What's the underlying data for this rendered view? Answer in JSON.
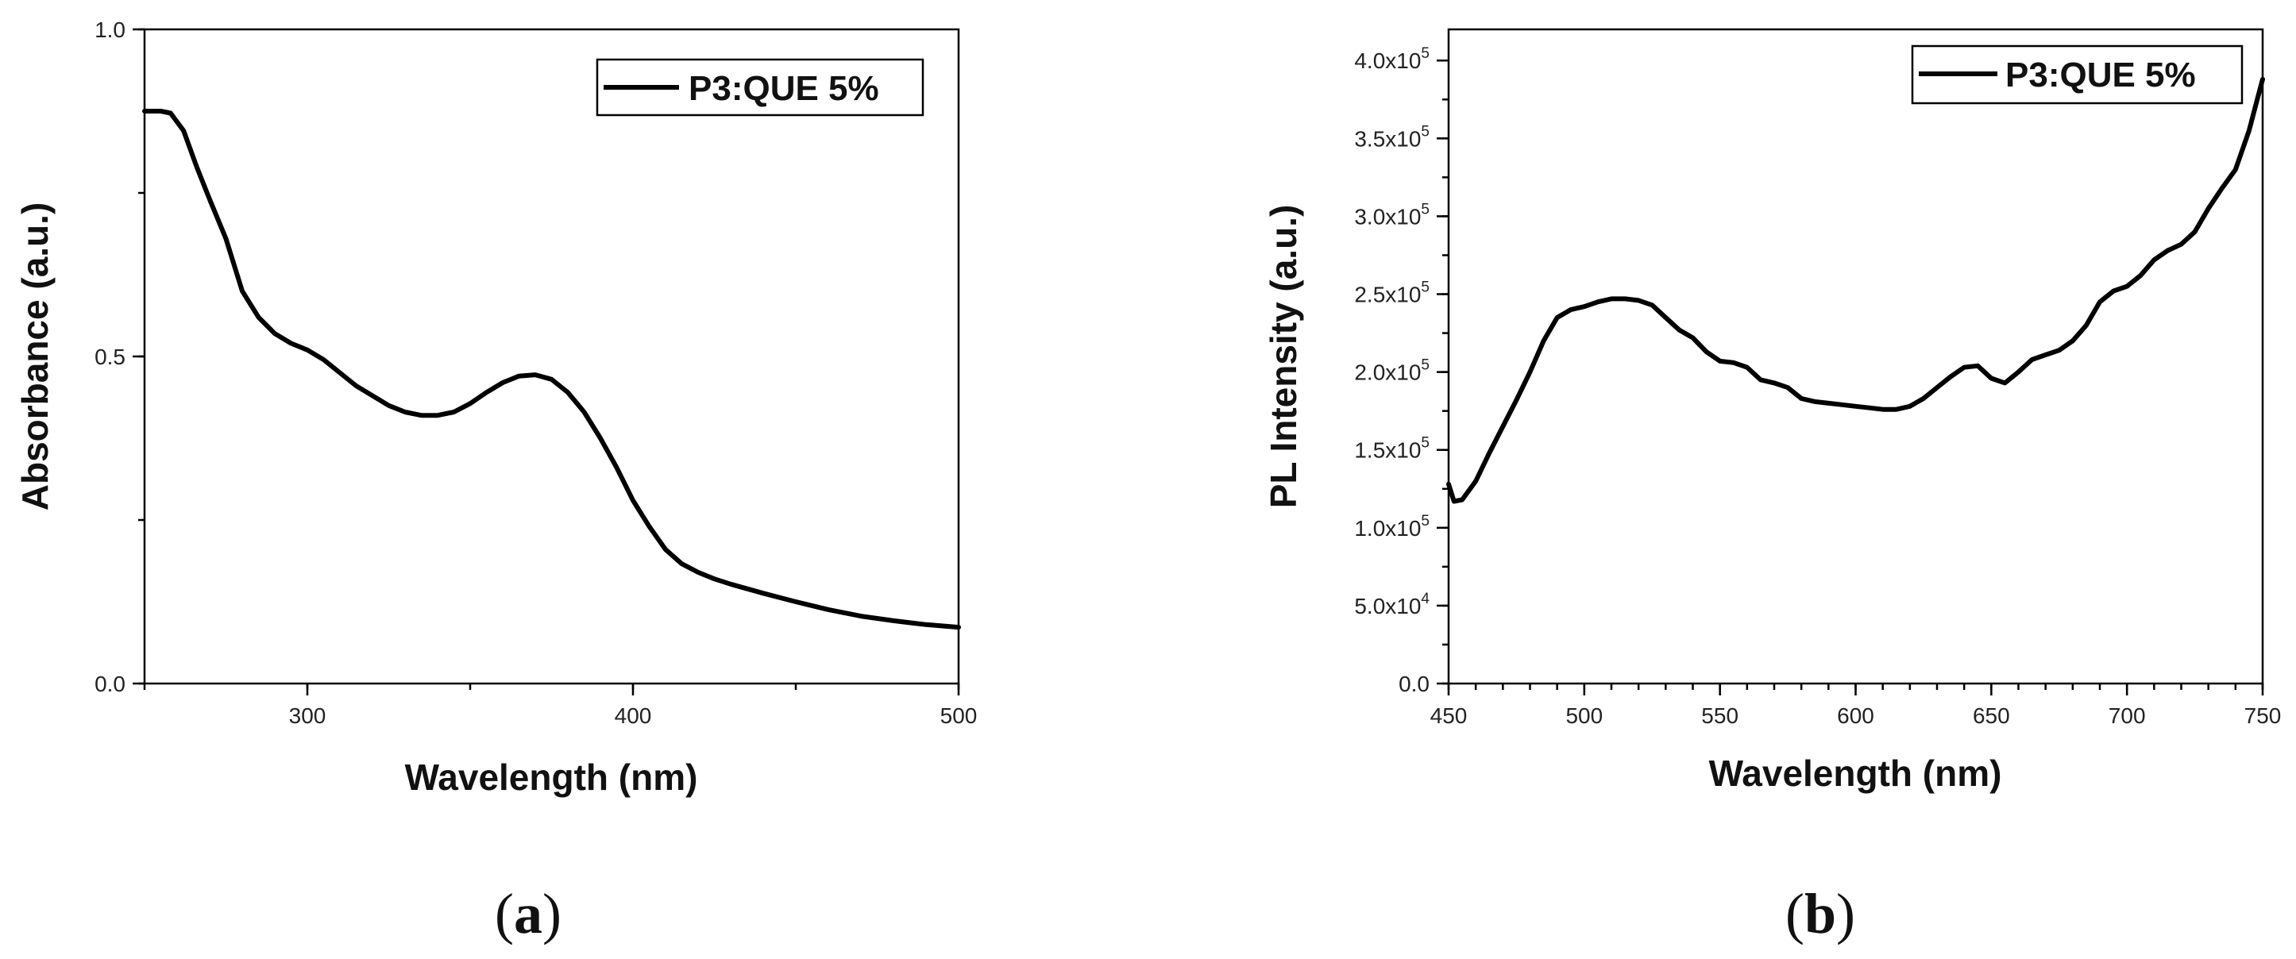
{
  "chart_data": [
    {
      "type": "line",
      "panel_label": "a",
      "xlabel": "Wavelength (nm)",
      "ylabel": "Absorbance (a.u.)",
      "xlim": [
        250,
        500
      ],
      "ylim": [
        0.0,
        1.0
      ],
      "x_ticks": [
        300,
        400,
        500
      ],
      "x_tick_labels": [
        "300",
        "400",
        "500"
      ],
      "y_ticks": [
        0.0,
        0.5,
        1.0
      ],
      "y_tick_labels": [
        "0.0",
        "0.5",
        "1.0"
      ],
      "legend": {
        "position": "top-right",
        "entries": [
          "P3:QUE 5%"
        ]
      },
      "series": [
        {
          "name": "P3:QUE 5%",
          "color": "#000000",
          "x": [
            250,
            255,
            258,
            262,
            266,
            270,
            275,
            280,
            285,
            290,
            295,
            300,
            305,
            310,
            315,
            320,
            325,
            330,
            335,
            340,
            345,
            350,
            355,
            360,
            365,
            370,
            375,
            380,
            385,
            390,
            395,
            400,
            405,
            410,
            415,
            420,
            425,
            430,
            440,
            450,
            460,
            470,
            480,
            490,
            500
          ],
          "y": [
            0.875,
            0.875,
            0.872,
            0.845,
            0.79,
            0.74,
            0.68,
            0.6,
            0.56,
            0.535,
            0.52,
            0.51,
            0.495,
            0.475,
            0.455,
            0.44,
            0.425,
            0.415,
            0.41,
            0.41,
            0.415,
            0.428,
            0.445,
            0.46,
            0.47,
            0.472,
            0.465,
            0.445,
            0.415,
            0.375,
            0.33,
            0.28,
            0.24,
            0.205,
            0.183,
            0.17,
            0.16,
            0.152,
            0.138,
            0.125,
            0.113,
            0.103,
            0.096,
            0.09,
            0.086
          ]
        }
      ]
    },
    {
      "type": "line",
      "panel_label": "b",
      "xlabel": "Wavelength (nm)",
      "ylabel": "PL Intensity (a.u.)",
      "xlim": [
        450,
        750
      ],
      "ylim": [
        0,
        420000
      ],
      "x_ticks": [
        450,
        500,
        550,
        600,
        650,
        700,
        750
      ],
      "x_tick_labels": [
        "450",
        "500",
        "550",
        "600",
        "650",
        "700",
        "750"
      ],
      "y_ticks": [
        0,
        50000,
        100000,
        150000,
        200000,
        250000,
        300000,
        350000,
        400000
      ],
      "y_tick_labels": [
        {
          "mant": "0.0",
          "exp": ""
        },
        {
          "mant": "5.0x10",
          "exp": "4"
        },
        {
          "mant": "1.0x10",
          "exp": "5"
        },
        {
          "mant": "1.5x10",
          "exp": "5"
        },
        {
          "mant": "2.0x10",
          "exp": "5"
        },
        {
          "mant": "2.5x10",
          "exp": "5"
        },
        {
          "mant": "3.0x10",
          "exp": "5"
        },
        {
          "mant": "3.5x10",
          "exp": "5"
        },
        {
          "mant": "4.0x10",
          "exp": "5"
        }
      ],
      "legend": {
        "position": "top-right",
        "entries": [
          "P3:QUE 5%"
        ]
      },
      "series": [
        {
          "name": "P3:QUE 5%",
          "color": "#000000",
          "x": [
            450,
            452,
            455,
            460,
            465,
            470,
            475,
            480,
            485,
            490,
            495,
            500,
            505,
            510,
            515,
            520,
            525,
            530,
            535,
            540,
            545,
            550,
            555,
            560,
            565,
            570,
            575,
            580,
            585,
            590,
            595,
            600,
            605,
            610,
            615,
            620,
            625,
            630,
            635,
            640,
            645,
            650,
            655,
            660,
            665,
            670,
            675,
            680,
            685,
            690,
            695,
            700,
            705,
            710,
            715,
            720,
            725,
            730,
            735,
            740,
            745,
            748,
            750
          ],
          "y": [
            128000,
            117000,
            118000,
            130000,
            148000,
            165000,
            182000,
            200000,
            220000,
            235000,
            240000,
            242000,
            245000,
            247000,
            247000,
            246000,
            243000,
            235000,
            227000,
            222000,
            213000,
            207000,
            206000,
            203000,
            195000,
            193000,
            190000,
            183000,
            181000,
            180000,
            179000,
            178000,
            177000,
            176000,
            176000,
            178000,
            183000,
            190000,
            197000,
            203000,
            204000,
            196000,
            193000,
            200000,
            208000,
            211000,
            214000,
            220000,
            230000,
            245000,
            252000,
            255000,
            262000,
            272000,
            278000,
            282000,
            290000,
            305000,
            318000,
            330000,
            355000,
            375000,
            388000
          ]
        }
      ]
    }
  ]
}
